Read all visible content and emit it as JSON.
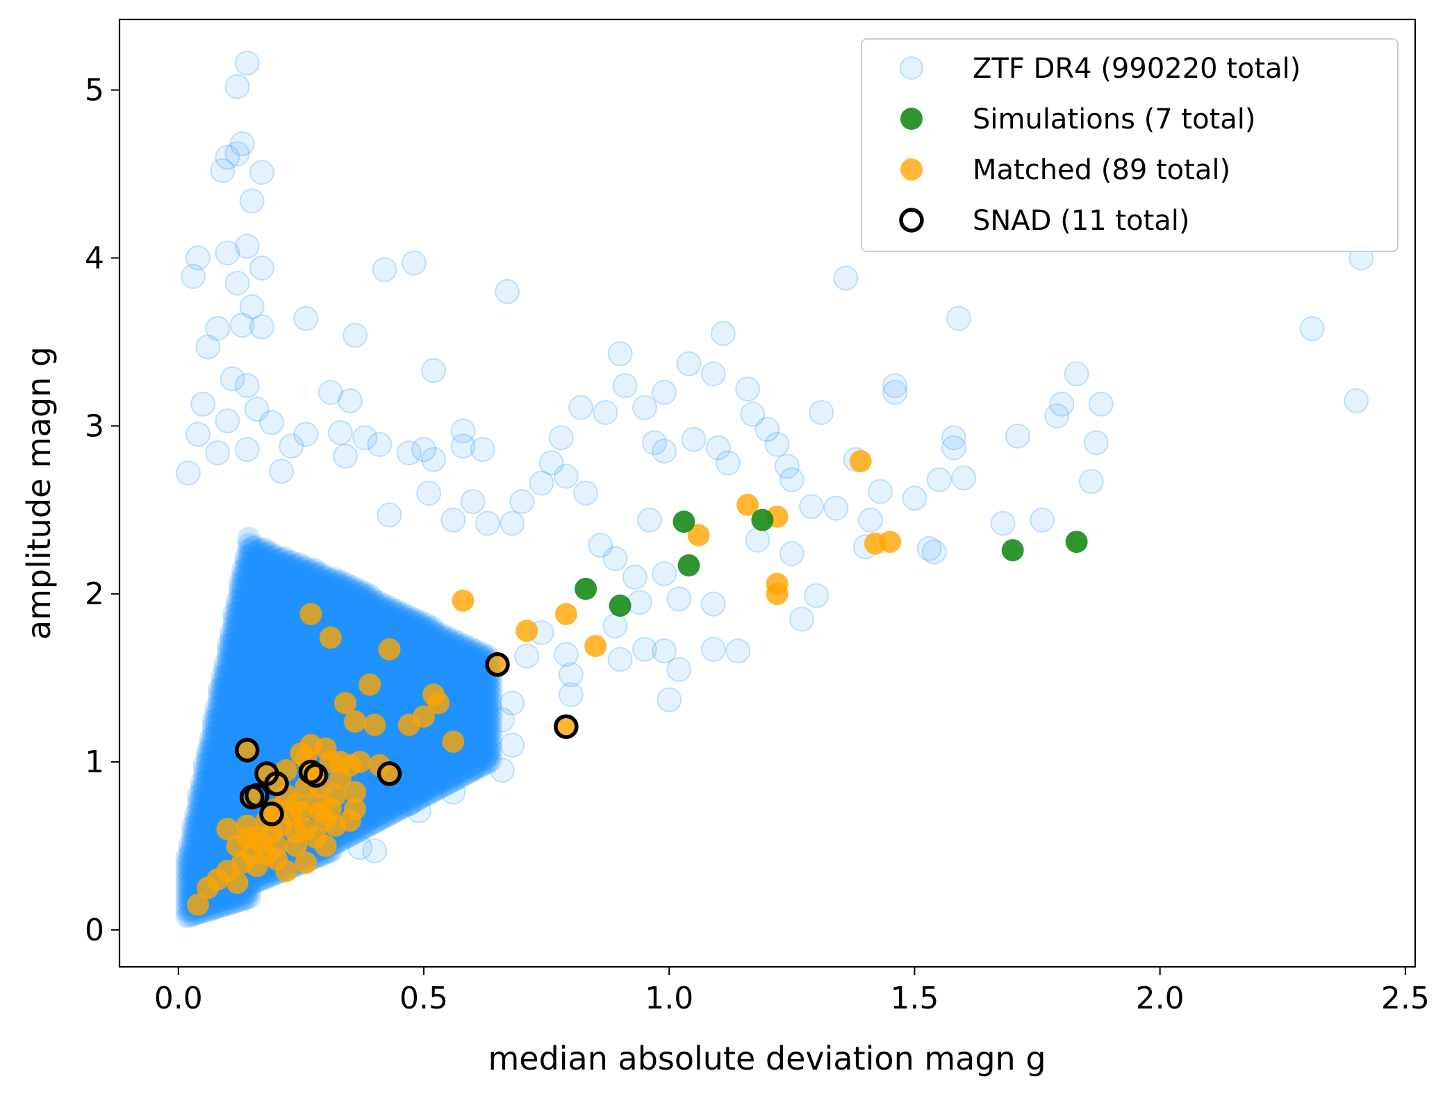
{
  "chart_data": {
    "type": "scatter",
    "xlabel": "median absolute deviation magn g",
    "ylabel": "amplitude magn g",
    "xlim": [
      -0.12,
      2.52
    ],
    "ylim": [
      -0.22,
      5.42
    ],
    "xticks": [
      0.0,
      0.5,
      1.0,
      1.5,
      2.0,
      2.5
    ],
    "xtick_labels": [
      "0.0",
      "0.5",
      "1.0",
      "1.5",
      "2.0",
      "2.5"
    ],
    "yticks": [
      0,
      1,
      2,
      3,
      4,
      5
    ],
    "ytick_labels": [
      "0",
      "1",
      "2",
      "3",
      "4",
      "5"
    ],
    "grid": false,
    "legend_position": "upper-right",
    "series": [
      {
        "name": "ZTF DR4 (990220 total)",
        "color": "#1E90FF",
        "alpha": 0.12,
        "marker": "filled-circle",
        "outline_points": [
          [
            0.14,
            5.16
          ],
          [
            0.12,
            5.02
          ],
          [
            0.13,
            4.68
          ],
          [
            0.1,
            4.6
          ],
          [
            0.12,
            4.62
          ],
          [
            0.09,
            4.52
          ],
          [
            0.17,
            4.51
          ],
          [
            0.15,
            4.34
          ],
          [
            0.04,
            4.0
          ],
          [
            0.1,
            4.03
          ],
          [
            0.14,
            4.07
          ],
          [
            0.03,
            3.89
          ],
          [
            0.17,
            3.94
          ],
          [
            0.12,
            3.85
          ],
          [
            0.06,
            3.47
          ],
          [
            0.13,
            3.6
          ],
          [
            0.15,
            3.71
          ],
          [
            0.08,
            3.58
          ],
          [
            0.17,
            3.59
          ],
          [
            0.11,
            3.28
          ],
          [
            0.14,
            3.24
          ],
          [
            0.05,
            3.13
          ],
          [
            0.1,
            3.03
          ],
          [
            0.16,
            3.1
          ],
          [
            0.19,
            3.02
          ],
          [
            0.04,
            2.95
          ],
          [
            0.02,
            2.72
          ],
          [
            0.08,
            2.84
          ],
          [
            0.14,
            2.86
          ],
          [
            0.23,
            2.88
          ],
          [
            0.26,
            2.95
          ],
          [
            0.21,
            2.73
          ],
          [
            0.31,
            3.2
          ],
          [
            0.33,
            2.96
          ],
          [
            0.35,
            3.15
          ],
          [
            0.36,
            3.54
          ],
          [
            0.26,
            3.64
          ],
          [
            0.42,
            3.93
          ],
          [
            0.48,
            3.97
          ],
          [
            0.67,
            3.8
          ],
          [
            0.38,
            2.93
          ],
          [
            0.41,
            2.89
          ],
          [
            0.47,
            2.84
          ],
          [
            0.5,
            2.86
          ],
          [
            0.52,
            2.8
          ],
          [
            0.58,
            2.97
          ],
          [
            0.58,
            2.88
          ],
          [
            0.62,
            2.86
          ],
          [
            0.52,
            3.33
          ],
          [
            0.34,
            2.82
          ],
          [
            0.43,
            2.47
          ],
          [
            0.51,
            2.6
          ],
          [
            0.56,
            2.44
          ],
          [
            0.6,
            2.55
          ],
          [
            0.63,
            2.42
          ],
          [
            0.68,
            2.42
          ],
          [
            0.7,
            2.55
          ],
          [
            0.74,
            2.66
          ],
          [
            0.76,
            2.78
          ],
          [
            0.78,
            2.93
          ],
          [
            0.79,
            2.7
          ],
          [
            0.83,
            2.6
          ],
          [
            0.82,
            3.11
          ],
          [
            0.87,
            3.08
          ],
          [
            0.9,
            3.43
          ],
          [
            0.91,
            3.24
          ],
          [
            0.95,
            3.11
          ],
          [
            0.99,
            3.2
          ],
          [
            1.04,
            3.37
          ],
          [
            1.09,
            3.31
          ],
          [
            1.11,
            3.55
          ],
          [
            1.16,
            3.22
          ],
          [
            1.17,
            3.07
          ],
          [
            1.2,
            2.98
          ],
          [
            1.22,
            2.89
          ],
          [
            1.1,
            2.87
          ],
          [
            1.12,
            2.78
          ],
          [
            1.05,
            2.92
          ],
          [
            0.97,
            2.9
          ],
          [
            0.99,
            2.85
          ],
          [
            1.24,
            2.76
          ],
          [
            1.25,
            2.68
          ],
          [
            1.29,
            2.52
          ],
          [
            1.31,
            3.08
          ],
          [
            1.36,
            3.88
          ],
          [
            1.38,
            2.8
          ],
          [
            1.41,
            2.44
          ],
          [
            1.43,
            2.61
          ],
          [
            1.46,
            3.24
          ],
          [
            1.46,
            3.2
          ],
          [
            1.5,
            2.57
          ],
          [
            1.53,
            2.27
          ],
          [
            1.55,
            2.68
          ],
          [
            1.58,
            2.93
          ],
          [
            1.58,
            2.87
          ],
          [
            1.6,
            2.69
          ],
          [
            1.59,
            3.64
          ],
          [
            1.68,
            2.42
          ],
          [
            1.71,
            2.94
          ],
          [
            1.76,
            2.44
          ],
          [
            1.79,
            3.06
          ],
          [
            1.8,
            3.13
          ],
          [
            1.83,
            3.31
          ],
          [
            1.86,
            2.67
          ],
          [
            1.87,
            2.9
          ],
          [
            1.88,
            3.13
          ],
          [
            2.31,
            3.58
          ],
          [
            2.4,
            3.15
          ],
          [
            2.41,
            4.0
          ],
          [
            1.27,
            1.85
          ],
          [
            1.3,
            1.99
          ],
          [
            1.14,
            1.66
          ],
          [
            1.09,
            1.67
          ],
          [
            1.09,
            1.94
          ],
          [
            1.02,
            1.97
          ],
          [
            0.99,
            1.66
          ],
          [
            0.95,
            1.67
          ],
          [
            0.94,
            1.95
          ],
          [
            0.9,
            1.61
          ],
          [
            0.89,
            1.81
          ],
          [
            0.8,
            1.52
          ],
          [
            0.8,
            1.4
          ],
          [
            0.79,
            1.64
          ],
          [
            0.74,
            1.77
          ],
          [
            0.71,
            1.63
          ],
          [
            0.68,
            1.35
          ],
          [
            0.66,
            1.25
          ],
          [
            0.68,
            1.1
          ],
          [
            0.63,
            1.06
          ],
          [
            0.56,
            0.82
          ],
          [
            0.6,
            0.97
          ],
          [
            0.66,
            0.95
          ],
          [
            1.0,
            1.37
          ],
          [
            1.02,
            1.55
          ],
          [
            1.25,
            2.24
          ],
          [
            1.18,
            2.32
          ],
          [
            1.34,
            2.51
          ],
          [
            1.4,
            2.28
          ],
          [
            1.54,
            2.25
          ],
          [
            0.86,
            2.29
          ],
          [
            0.89,
            2.21
          ],
          [
            0.93,
            2.1
          ],
          [
            0.96,
            2.44
          ],
          [
            0.99,
            2.12
          ],
          [
            0.49,
            0.71
          ],
          [
            0.47,
            0.75
          ],
          [
            0.37,
            0.49
          ],
          [
            0.4,
            0.47
          ],
          [
            0.53,
            1.06
          ]
        ]
      },
      {
        "name": "Simulations (7 total)",
        "color": "#188A18",
        "points": [
          [
            1.03,
            2.43
          ],
          [
            0.83,
            2.03
          ],
          [
            0.9,
            1.93
          ],
          [
            1.04,
            2.17
          ],
          [
            1.19,
            2.44
          ],
          [
            1.7,
            2.26
          ],
          [
            1.83,
            2.31
          ]
        ]
      },
      {
        "name": "Matched (89 total)",
        "color": "#FFA500",
        "points": [
          [
            0.04,
            0.15
          ],
          [
            0.06,
            0.25
          ],
          [
            0.08,
            0.3
          ],
          [
            0.1,
            0.35
          ],
          [
            0.12,
            0.28
          ],
          [
            0.13,
            0.4
          ],
          [
            0.15,
            0.45
          ],
          [
            0.16,
            0.38
          ],
          [
            0.1,
            0.6
          ],
          [
            0.14,
            0.62
          ],
          [
            0.16,
            0.55
          ],
          [
            0.18,
            0.65
          ],
          [
            0.2,
            0.72
          ],
          [
            0.22,
            0.8
          ],
          [
            0.24,
            0.75
          ],
          [
            0.26,
            0.6
          ],
          [
            0.28,
            0.55
          ],
          [
            0.3,
            0.65
          ],
          [
            0.22,
            0.95
          ],
          [
            0.25,
            1.05
          ],
          [
            0.27,
            1.1
          ],
          [
            0.29,
            0.85
          ],
          [
            0.31,
            1.0
          ],
          [
            0.33,
            0.9
          ],
          [
            0.35,
            0.98
          ],
          [
            0.36,
            0.82
          ],
          [
            0.36,
            0.72
          ],
          [
            0.24,
            0.5
          ],
          [
            0.26,
            0.4
          ],
          [
            0.3,
            1.08
          ],
          [
            0.32,
            0.8
          ],
          [
            0.28,
            0.75
          ],
          [
            0.2,
            0.5
          ],
          [
            0.18,
            0.45
          ],
          [
            0.21,
            0.62
          ],
          [
            0.27,
            0.92
          ],
          [
            0.29,
            0.7
          ],
          [
            0.23,
            0.68
          ],
          [
            0.19,
            0.58
          ],
          [
            0.17,
            0.52
          ],
          [
            0.25,
            0.7
          ],
          [
            0.26,
            0.85
          ],
          [
            0.33,
            1.0
          ],
          [
            0.34,
            1.35
          ],
          [
            0.36,
            1.24
          ],
          [
            0.39,
            1.46
          ],
          [
            0.4,
            1.22
          ],
          [
            0.43,
            1.67
          ],
          [
            0.31,
            1.74
          ],
          [
            0.27,
            1.88
          ],
          [
            0.47,
            1.22
          ],
          [
            0.5,
            1.27
          ],
          [
            0.52,
            1.4
          ],
          [
            0.53,
            1.35
          ],
          [
            0.56,
            1.12
          ],
          [
            0.58,
            1.96
          ],
          [
            0.71,
            1.78
          ],
          [
            0.79,
            1.88
          ],
          [
            0.85,
            1.69
          ],
          [
            1.06,
            2.35
          ],
          [
            1.16,
            2.53
          ],
          [
            1.22,
            2.46
          ],
          [
            1.22,
            2.06
          ],
          [
            1.22,
            2.0
          ],
          [
            1.39,
            2.79
          ],
          [
            1.42,
            2.3
          ],
          [
            1.45,
            2.31
          ],
          [
            0.65,
            1.58
          ],
          [
            0.79,
            1.21
          ],
          [
            0.41,
            0.98
          ],
          [
            0.14,
            1.07
          ],
          [
            0.18,
            0.92
          ],
          [
            0.2,
            0.86
          ],
          [
            0.15,
            0.79
          ],
          [
            0.19,
            0.69
          ],
          [
            0.27,
            0.93
          ],
          [
            0.43,
            0.93
          ],
          [
            0.28,
            0.91
          ],
          [
            0.22,
            0.35
          ],
          [
            0.2,
            0.42
          ],
          [
            0.3,
            0.5
          ],
          [
            0.32,
            0.62
          ],
          [
            0.24,
            0.58
          ],
          [
            0.12,
            0.5
          ],
          [
            0.14,
            0.55
          ],
          [
            0.26,
            1.02
          ],
          [
            0.31,
            0.72
          ],
          [
            0.35,
            0.65
          ],
          [
            0.37,
            1.0
          ]
        ]
      },
      {
        "name": "SNAD (11 total)",
        "color": "#000000",
        "marker": "open-circle",
        "points": [
          [
            0.65,
            1.58
          ],
          [
            0.79,
            1.21
          ],
          [
            0.14,
            1.07
          ],
          [
            0.18,
            0.93
          ],
          [
            0.2,
            0.87
          ],
          [
            0.15,
            0.79
          ],
          [
            0.19,
            0.69
          ],
          [
            0.27,
            0.94
          ],
          [
            0.28,
            0.92
          ],
          [
            0.43,
            0.93
          ],
          [
            0.16,
            0.8
          ]
        ]
      }
    ]
  }
}
